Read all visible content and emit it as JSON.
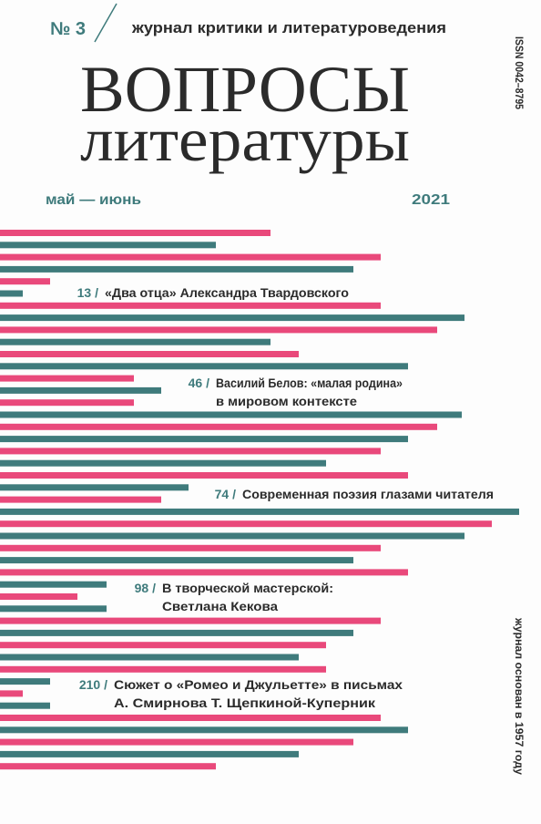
{
  "header": {
    "issue": "№ 3",
    "subtitle": "журнал критики и литературоведения",
    "title_line1": "ВОПРОСЫ",
    "title_line2": "литературы",
    "issn": "ISSN 0042–8795",
    "months": "май — июнь",
    "year": "2021",
    "founded": "журнал основан в 1957 году"
  },
  "contents": [
    {
      "page": "13 /",
      "lines": [
        "«Два отца» Александра Твардовского"
      ]
    },
    {
      "page": "46 /",
      "lines": [
        "Василий Белов: «малая родина»",
        "в мировом контексте"
      ]
    },
    {
      "page": "74 /",
      "lines": [
        "Современная поэзия глазами читателя"
      ]
    },
    {
      "page": "98 /",
      "lines": [
        "В творческой мастерской:",
        "Светлана Кекова"
      ]
    },
    {
      "page": "210 /",
      "lines": [
        "Сюжет о «Ромео и Джульетте» в письмах",
        "А. Смирнова Т. Щепкиной-Куперник"
      ]
    }
  ]
}
